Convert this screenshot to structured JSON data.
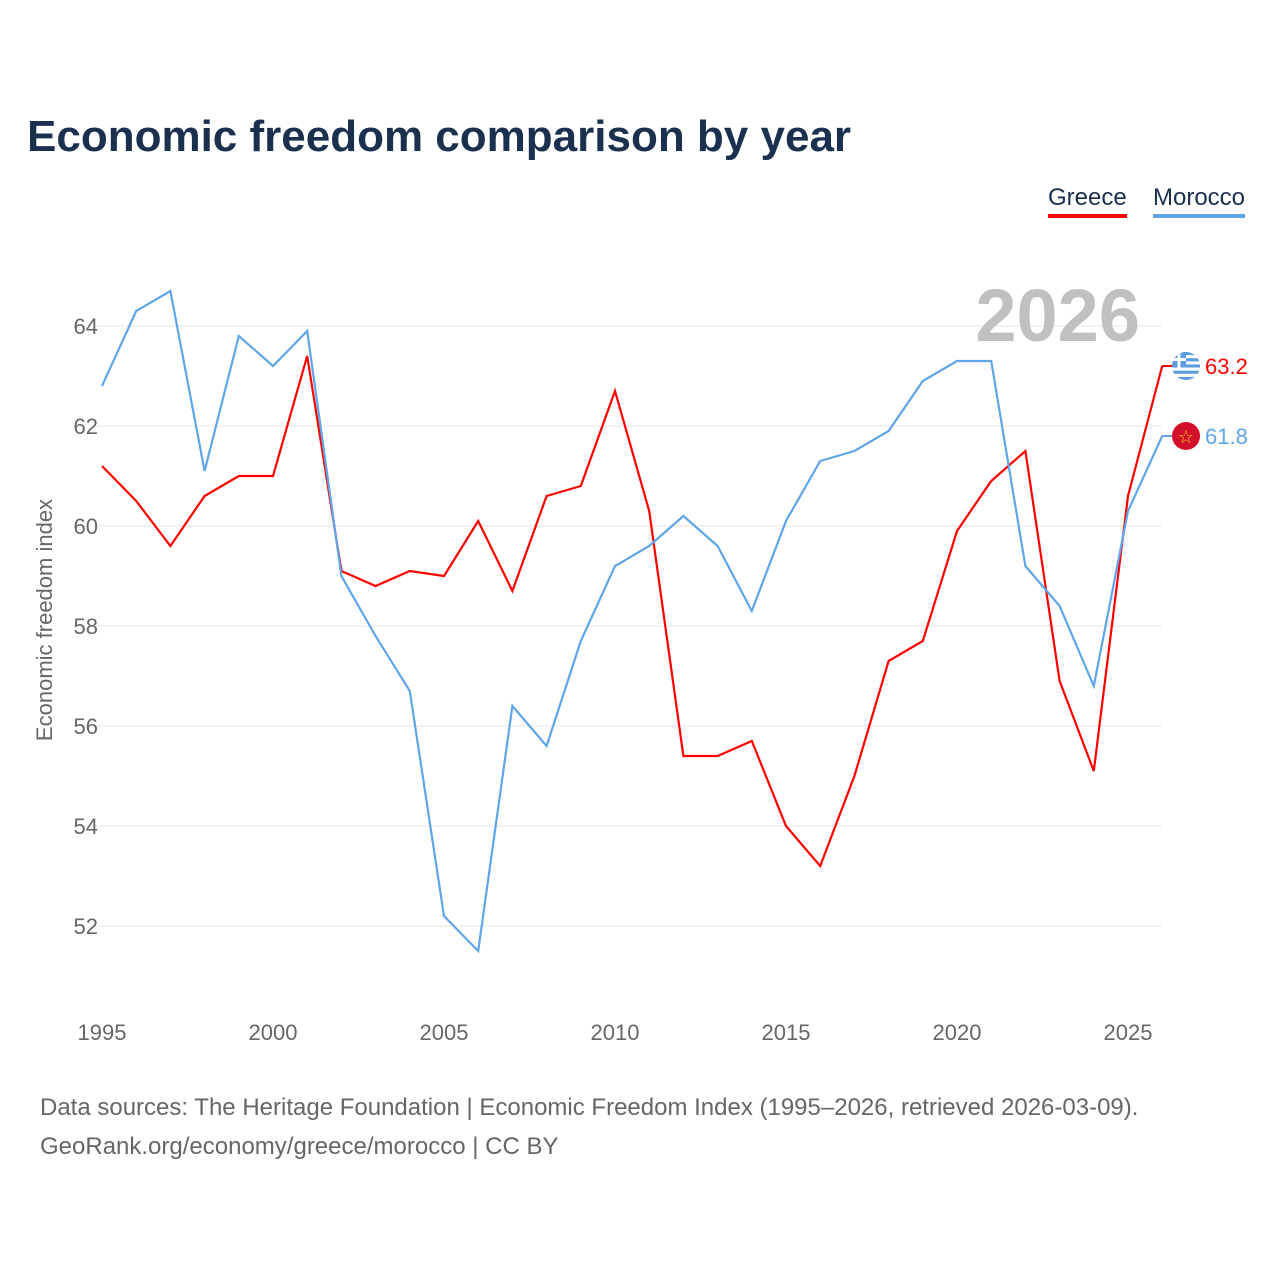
{
  "chart_data": {
    "type": "line",
    "title": "Economic freedom comparison by year",
    "ylabel": "Economic freedom index",
    "xlabel": "",
    "xlim": [
      1995,
      2026
    ],
    "ylim": [
      50.5,
      65.5
    ],
    "yticks": [
      52,
      54,
      56,
      58,
      60,
      62,
      64
    ],
    "xticks": [
      1995,
      2000,
      2005,
      2010,
      2015,
      2020,
      2025
    ],
    "grid": true,
    "legend_position": "top-right",
    "current_year_label": "2026",
    "x": [
      1995,
      1996,
      1997,
      1998,
      1999,
      2000,
      2001,
      2002,
      2003,
      2004,
      2005,
      2006,
      2007,
      2008,
      2009,
      2010,
      2011,
      2012,
      2013,
      2014,
      2015,
      2016,
      2017,
      2018,
      2019,
      2020,
      2021,
      2022,
      2023,
      2024,
      2025,
      2026
    ],
    "series": [
      {
        "name": "Greece",
        "color": "#ff0000",
        "end_label": "63.2",
        "flag": "greece-flag",
        "values": [
          61.2,
          60.5,
          59.6,
          60.6,
          61.0,
          61.0,
          63.4,
          59.1,
          58.8,
          59.1,
          59.0,
          60.1,
          58.7,
          60.6,
          60.8,
          62.7,
          60.3,
          55.4,
          55.4,
          55.7,
          54.0,
          53.2,
          55.0,
          57.3,
          57.7,
          59.9,
          60.9,
          61.5,
          56.9,
          55.1,
          60.6,
          63.2
        ]
      },
      {
        "name": "Morocco",
        "color": "#5fa5e8",
        "end_label": "61.8",
        "flag": "morocco-flag",
        "values": [
          62.8,
          64.3,
          64.7,
          61.1,
          63.8,
          63.2,
          63.9,
          59.0,
          57.8,
          56.7,
          52.2,
          51.5,
          56.4,
          55.6,
          57.7,
          59.2,
          59.6,
          60.2,
          59.6,
          58.3,
          60.1,
          61.3,
          61.5,
          61.9,
          62.9,
          63.3,
          63.3,
          59.2,
          58.4,
          56.8,
          60.3,
          61.8
        ]
      }
    ]
  },
  "source": {
    "line1": "Data sources: The Heritage Foundation | Economic Freedom Index (1995–2026, retrieved 2026-03-09).",
    "line2": "GeoRank.org/economy/greece/morocco | CC BY"
  }
}
